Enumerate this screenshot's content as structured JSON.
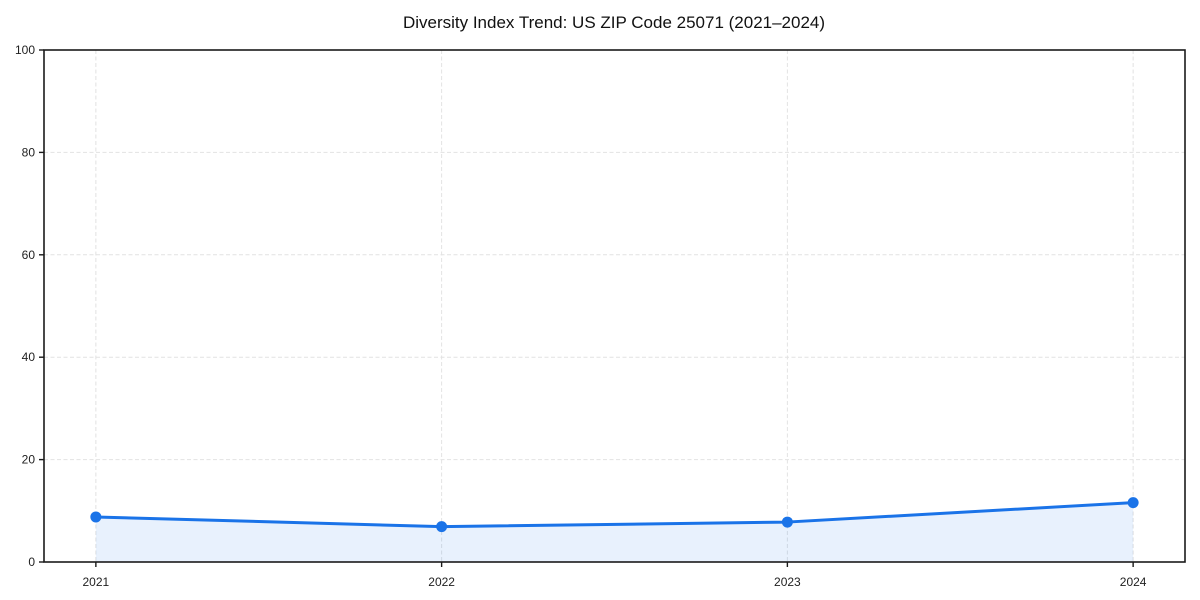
{
  "title": "Diversity Index Trend: US ZIP Code 25071 (2021–2024)",
  "chart_data": {
    "type": "line",
    "title": "Diversity Index Trend: US ZIP Code 25071 (2021–2024)",
    "x": [
      2021,
      2022,
      2023,
      2024
    ],
    "x_tick_labels": [
      "2021",
      "2022",
      "2023",
      "2024"
    ],
    "series": [
      {
        "name": "Diversity Index",
        "values": [
          8.8,
          6.9,
          7.8,
          11.6
        ]
      }
    ],
    "area_fill": true,
    "marker": "circle",
    "xlabel": "",
    "ylabel": "",
    "xlim": [
      2020.85,
      2024.15
    ],
    "ylim": [
      0,
      100
    ],
    "y_ticks": [
      0,
      20,
      40,
      60,
      80,
      100
    ],
    "grid": true,
    "grid_style": "dashed",
    "legend_position": "none",
    "colors": {
      "line": "#1a73e8",
      "marker": "#1a73e8",
      "area": "rgba(26,115,232,0.10)",
      "grid": "#e2e2e2",
      "spine": "#1a1a1a",
      "tick_label": "#1f1f1f",
      "title": "#111111",
      "background": "#ffffff"
    }
  }
}
